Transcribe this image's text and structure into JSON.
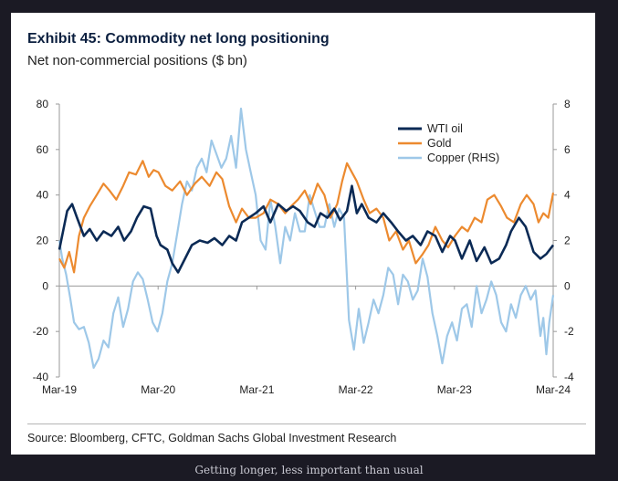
{
  "caption": "Getting longer, less important than usual",
  "chart_data": {
    "type": "line",
    "title": "Exhibit 45: Commodity net long positioning",
    "subtitle": "Net non-commercial positions ($ bn)",
    "source": "Source: Bloomberg, CFTC, Goldman Sachs Global Investment Research",
    "x_ticks": [
      "Mar-19",
      "Mar-20",
      "Mar-21",
      "Mar-22",
      "Mar-23",
      "Mar-24"
    ],
    "x_range": [
      2019.17,
      2024.2
    ],
    "y_left": {
      "range": [
        -40,
        80
      ],
      "ticks": [
        80,
        60,
        40,
        20,
        0,
        -20,
        -40
      ]
    },
    "y_right": {
      "range": [
        -4,
        8
      ],
      "ticks": [
        8,
        6,
        4,
        2,
        0,
        -2,
        -4
      ]
    },
    "legend_position": "top-right",
    "grid": false,
    "series": [
      {
        "name": "WTI oil",
        "axis": "left",
        "color": "#0b2a55",
        "x": [
          2019.17,
          2019.25,
          2019.3,
          2019.35,
          2019.42,
          2019.48,
          2019.55,
          2019.62,
          2019.7,
          2019.77,
          2019.83,
          2019.9,
          2019.96,
          2020.03,
          2020.1,
          2020.16,
          2020.2,
          2020.27,
          2020.32,
          2020.38,
          2020.45,
          2020.52,
          2020.6,
          2020.68,
          2020.75,
          2020.83,
          2020.9,
          2020.97,
          2021.03,
          2021.1,
          2021.17,
          2021.25,
          2021.32,
          2021.4,
          2021.48,
          2021.55,
          2021.62,
          2021.7,
          2021.77,
          2021.83,
          2021.9,
          2021.97,
          2022.03,
          2022.1,
          2022.15,
          2022.2,
          2022.25,
          2022.32,
          2022.4,
          2022.47,
          2022.55,
          2022.62,
          2022.7,
          2022.77,
          2022.85,
          2022.92,
          2023.0,
          2023.07,
          2023.15,
          2023.2,
          2023.27,
          2023.35,
          2023.42,
          2023.5,
          2023.57,
          2023.65,
          2023.72,
          2023.77,
          2023.85,
          2023.92,
          2024.0,
          2024.07,
          2024.13,
          2024.2
        ],
        "y": [
          16,
          33,
          36,
          30,
          22,
          25,
          20,
          24,
          22,
          26,
          20,
          24,
          30,
          35,
          34,
          22,
          18,
          16,
          10,
          6,
          12,
          18,
          20,
          19,
          21,
          18,
          22,
          20,
          28,
          30,
          32,
          35,
          28,
          36,
          33,
          35,
          33,
          28,
          26,
          32,
          30,
          34,
          29,
          33,
          44,
          32,
          36,
          30,
          28,
          32,
          28,
          24,
          20,
          22,
          18,
          24,
          22,
          15,
          22,
          20,
          12,
          20,
          11,
          17,
          10,
          12,
          18,
          24,
          30,
          26,
          15,
          12,
          14,
          18
        ]
      },
      {
        "name": "Gold",
        "axis": "left",
        "color": "#ec8a2f",
        "x": [
          2019.17,
          2019.22,
          2019.27,
          2019.32,
          2019.37,
          2019.42,
          2019.48,
          2019.55,
          2019.62,
          2019.68,
          2019.75,
          2019.82,
          2019.88,
          2019.95,
          2020.02,
          2020.08,
          2020.13,
          2020.18,
          2020.25,
          2020.32,
          2020.4,
          2020.47,
          2020.55,
          2020.62,
          2020.7,
          2020.77,
          2020.83,
          2020.9,
          2020.97,
          2021.03,
          2021.1,
          2021.17,
          2021.25,
          2021.32,
          2021.4,
          2021.47,
          2021.53,
          2021.6,
          2021.67,
          2021.73,
          2021.8,
          2021.87,
          2021.93,
          2022.0,
          2022.05,
          2022.1,
          2022.15,
          2022.2,
          2022.27,
          2022.33,
          2022.4,
          2022.47,
          2022.53,
          2022.6,
          2022.67,
          2022.73,
          2022.8,
          2022.87,
          2022.93,
          2023.0,
          2023.07,
          2023.13,
          2023.2,
          2023.27,
          2023.33,
          2023.4,
          2023.47,
          2023.53,
          2023.6,
          2023.67,
          2023.73,
          2023.8,
          2023.87,
          2023.93,
          2024.0,
          2024.05,
          2024.1,
          2024.15,
          2024.2
        ],
        "y": [
          12,
          8,
          15,
          6,
          22,
          30,
          35,
          40,
          45,
          42,
          38,
          44,
          50,
          49,
          55,
          48,
          51,
          50,
          44,
          42,
          46,
          40,
          45,
          48,
          44,
          50,
          47,
          35,
          28,
          34,
          30,
          30,
          32,
          38,
          36,
          32,
          35,
          38,
          42,
          36,
          45,
          40,
          30,
          36,
          46,
          54,
          50,
          46,
          38,
          32,
          34,
          30,
          20,
          24,
          16,
          20,
          10,
          14,
          18,
          26,
          20,
          17,
          22,
          26,
          24,
          30,
          28,
          38,
          40,
          35,
          30,
          28,
          36,
          40,
          36,
          28,
          32,
          30,
          41
        ]
      },
      {
        "name": "Copper (RHS)",
        "axis": "right",
        "color": "#9ec8e8",
        "x": [
          2019.17,
          2019.2,
          2019.24,
          2019.28,
          2019.32,
          2019.37,
          2019.42,
          2019.47,
          2019.52,
          2019.57,
          2019.62,
          2019.67,
          2019.72,
          2019.77,
          2019.82,
          2019.87,
          2019.92,
          2019.97,
          2020.02,
          2020.07,
          2020.12,
          2020.17,
          2020.22,
          2020.27,
          2020.32,
          2020.37,
          2020.42,
          2020.47,
          2020.52,
          2020.57,
          2020.62,
          2020.67,
          2020.72,
          2020.77,
          2020.82,
          2020.87,
          2020.92,
          2020.97,
          2021.02,
          2021.07,
          2021.12,
          2021.17,
          2021.22,
          2021.27,
          2021.32,
          2021.37,
          2021.42,
          2021.47,
          2021.52,
          2021.57,
          2021.62,
          2021.67,
          2021.72,
          2021.77,
          2021.82,
          2021.87,
          2021.92,
          2021.97,
          2022.02,
          2022.07,
          2022.12,
          2022.17,
          2022.22,
          2022.27,
          2022.32,
          2022.37,
          2022.42,
          2022.47,
          2022.52,
          2022.57,
          2022.62,
          2022.67,
          2022.72,
          2022.77,
          2022.82,
          2022.87,
          2022.92,
          2022.97,
          2023.02,
          2023.07,
          2023.12,
          2023.17,
          2023.22,
          2023.27,
          2023.32,
          2023.37,
          2023.42,
          2023.47,
          2023.52,
          2023.57,
          2023.62,
          2023.67,
          2023.72,
          2023.77,
          2023.82,
          2023.87,
          2023.92,
          2023.97,
          2024.02,
          2024.07,
          2024.1,
          2024.13,
          2024.16,
          2024.2
        ],
        "y": [
          2.0,
          1.2,
          0.5,
          -0.5,
          -1.6,
          -1.9,
          -1.8,
          -2.5,
          -3.6,
          -3.2,
          -2.4,
          -2.7,
          -1.2,
          -0.5,
          -1.8,
          -1.0,
          0.2,
          0.6,
          0.3,
          -0.6,
          -1.6,
          -2.0,
          -1.2,
          0.2,
          1.0,
          2.3,
          3.6,
          4.6,
          4.2,
          5.2,
          5.6,
          5.0,
          6.4,
          5.8,
          5.2,
          5.6,
          6.6,
          5.2,
          7.8,
          6.0,
          5.0,
          4.0,
          2.0,
          1.6,
          3.8,
          2.6,
          1.0,
          2.6,
          2.0,
          3.2,
          2.4,
          2.4,
          4.0,
          3.3,
          2.6,
          2.6,
          3.6,
          2.6,
          3.4,
          3.0,
          -1.5,
          -2.8,
          -1.0,
          -2.5,
          -1.6,
          -0.6,
          -1.2,
          -0.4,
          0.8,
          0.5,
          -0.8,
          0.5,
          0.2,
          -0.6,
          -0.2,
          1.2,
          0.4,
          -1.2,
          -2.2,
          -3.4,
          -2.2,
          -1.6,
          -2.4,
          -1.0,
          -0.8,
          -1.8,
          0.0,
          -1.2,
          -0.6,
          0.2,
          -0.4,
          -1.6,
          -2.0,
          -0.8,
          -1.4,
          -0.4,
          0.0,
          -0.6,
          -0.2,
          -2.2,
          -1.4,
          -3.0,
          -1.6,
          -0.4
        ]
      }
    ]
  }
}
